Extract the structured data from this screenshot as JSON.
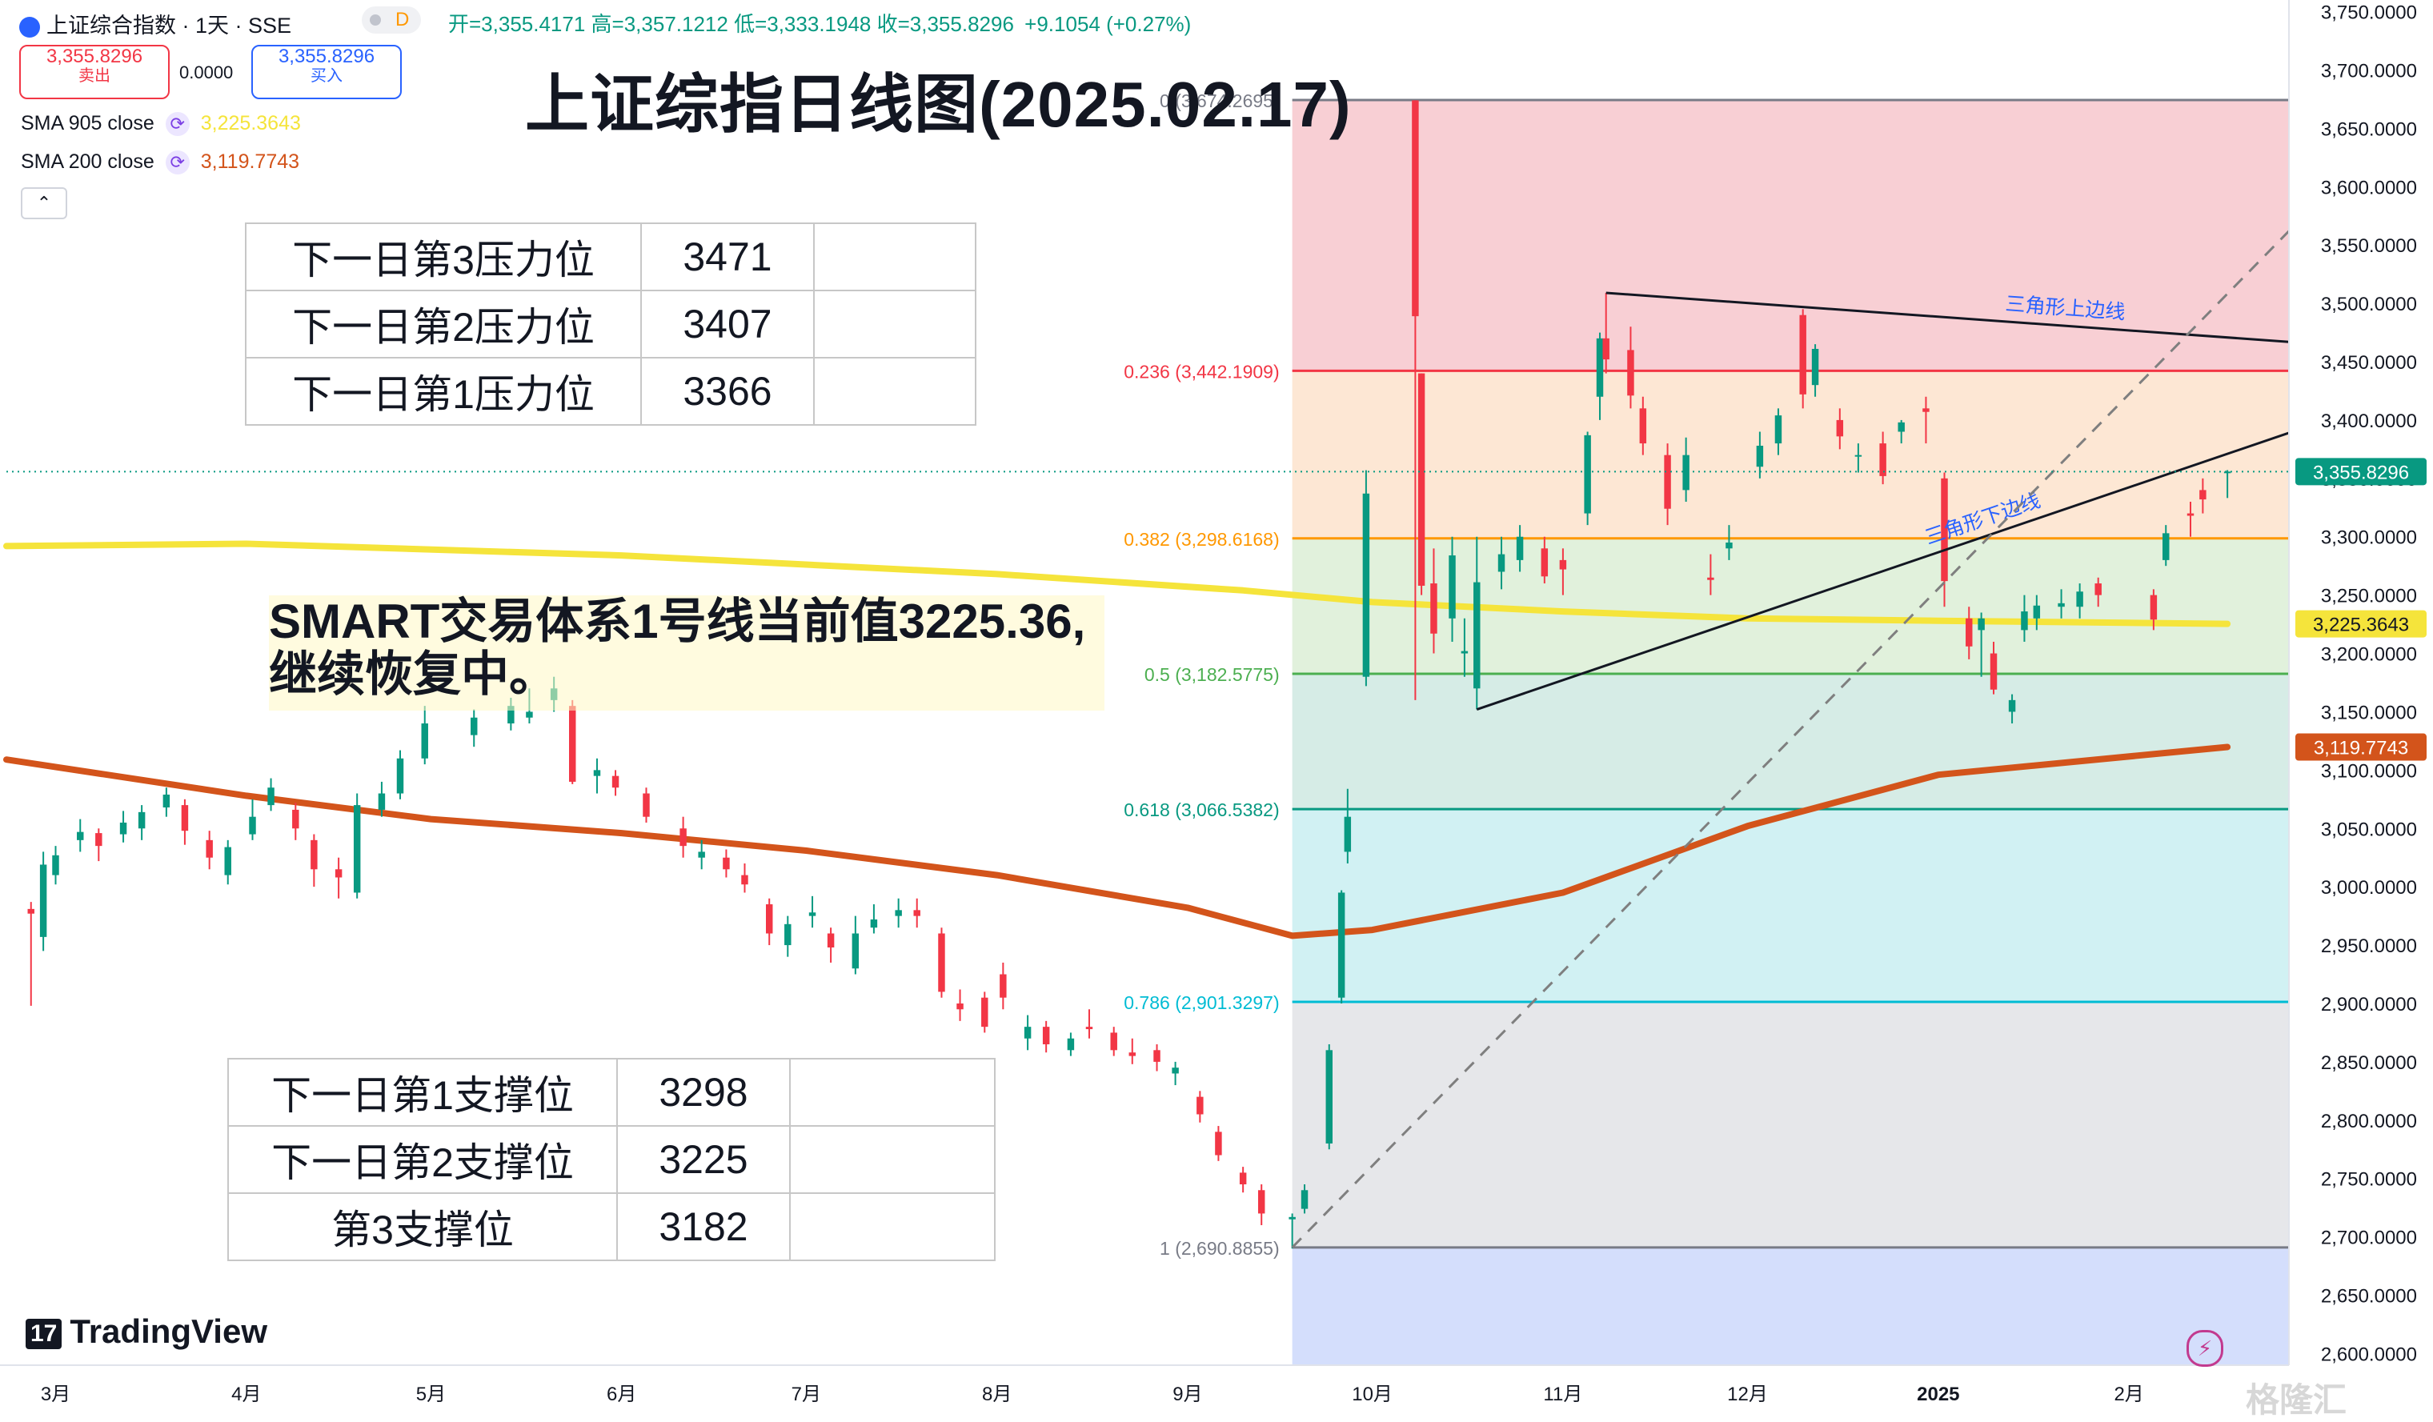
{
  "header": {
    "symbol": "上证综合指数 · 1天 · SSE",
    "badge": "D",
    "ohlc_label": "开=3,355.4171  高=3,357.1212  低=3,333.1948  收=3,355.8296",
    "change": "+9.1054 (+0.27%)",
    "sell_value": "3,355.8296",
    "sell_label": "卖出",
    "spread": "0.0000",
    "buy_value": "3,355.8296",
    "buy_label": "买入"
  },
  "indicators": [
    {
      "label": "SMA 905 close",
      "value": "3,225.3643",
      "color": "#f5e43b"
    },
    {
      "label": "SMA 200 close",
      "value": "3,119.7743",
      "color": "#d3541b"
    }
  ],
  "collapse_icon": "chevron-up-icon",
  "title": "上证综指日线图(2025.02.17)",
  "note": {
    "line1": "SMART交易体系1号线当前值3225.36,",
    "line2": "继续恢复中。"
  },
  "resistance_table": [
    {
      "label": "下一日第3压力位",
      "value": "3471"
    },
    {
      "label": "下一日第2压力位",
      "value": "3407"
    },
    {
      "label": "下一日第1压力位",
      "value": "3366"
    }
  ],
  "support_table": [
    {
      "label": "下一日第1支撑位",
      "value": "3298"
    },
    {
      "label": "下一日第2支撑位",
      "value": "3225"
    },
    {
      "label": "第3支撑位",
      "value": "3182"
    }
  ],
  "brand": "TradingView",
  "watermark": "格隆汇",
  "colors": {
    "up": "#089981",
    "down": "#f23645"
  },
  "chart_data": {
    "type": "candlestick",
    "y_range": [
      2590,
      3760
    ],
    "y_ticks": [
      2600,
      2650,
      2700,
      2750,
      2800,
      2850,
      2900,
      2950,
      3000,
      3050,
      3100,
      3150,
      3200,
      3250,
      3300,
      3350,
      3400,
      3450,
      3500,
      3550,
      3600,
      3650,
      3700,
      3750
    ],
    "y_tick_labels": [
      "2,600.0000",
      "2,650.0000",
      "2,700.0000",
      "2,750.0000",
      "2,800.0000",
      "2,850.0000",
      "2,900.0000",
      "2,950.0000",
      "3,000.0000",
      "3,050.0000",
      "3,100.0000",
      "3,150.0000",
      "3,200.0000",
      "3,250.0000",
      "3,300.0000",
      "3,350.0000",
      "3,400.0000",
      "3,450.0000",
      "3,500.0000",
      "3,550.0000",
      "3,600.0000",
      "3,650.0000",
      "3,700.0000",
      "3,750.0000"
    ],
    "x_range": [
      "2024-02-22",
      "2025-02-27"
    ],
    "x_ticks": [
      {
        "date": "2024-03-01",
        "label": "3月"
      },
      {
        "date": "2024-04-01",
        "label": "4月"
      },
      {
        "date": "2024-05-01",
        "label": "5月"
      },
      {
        "date": "2024-06-01",
        "label": "6月"
      },
      {
        "date": "2024-07-01",
        "label": "7月"
      },
      {
        "date": "2024-08-01",
        "label": "8月"
      },
      {
        "date": "2024-09-01",
        "label": "9月"
      },
      {
        "date": "2024-10-01",
        "label": "10月"
      },
      {
        "date": "2024-11-01",
        "label": "11月"
      },
      {
        "date": "2024-12-01",
        "label": "12月"
      },
      {
        "date": "2025-01-01",
        "label": "2025"
      },
      {
        "date": "2025-02-01",
        "label": "2月"
      }
    ],
    "fibonacci": {
      "start_date": "2024-09-18",
      "levels": [
        {
          "ratio": "0",
          "price": 3674.2695,
          "label": "0 (3,674.2695)",
          "line": "#787b86",
          "fill": "#f7c7cc"
        },
        {
          "ratio": "0.236",
          "price": 3442.1909,
          "label": "0.236 (3,442.1909)",
          "line": "#f23645",
          "fill": "#fde3cd"
        },
        {
          "ratio": "0.382",
          "price": 3298.6168,
          "label": "0.382 (3,298.6168)",
          "line": "#ff9800",
          "fill": "#dcefd6"
        },
        {
          "ratio": "0.5",
          "price": 3182.5775,
          "label": "0.5 (3,182.5775)",
          "line": "#4caf50",
          "fill": "#cfe9e2"
        },
        {
          "ratio": "0.618",
          "price": 3066.5382,
          "label": "0.618 (3,066.5382)",
          "line": "#089981",
          "fill": "#c9eef1"
        },
        {
          "ratio": "0.786",
          "price": 2901.3297,
          "label": "0.786 (2,901.3297)",
          "line": "#00bcd4",
          "fill": "#e2e3e6"
        },
        {
          "ratio": "1",
          "price": 2690.8855,
          "label": "1 (2,690.8855)",
          "line": "#787b86",
          "fill": "#ccd8fc"
        }
      ]
    },
    "trendlines": [
      {
        "name": "三角形上边线",
        "from": [
          "2024-11-08",
          3509
        ],
        "to": [
          "2025-02-27",
          3467
        ],
        "color": "#131722"
      },
      {
        "name": "三角形下边线",
        "from": [
          "2024-10-18",
          3152
        ],
        "to": [
          "2025-02-27",
          3389
        ],
        "color": "#131722"
      },
      {
        "from": [
          "2024-09-18",
          2690.9
        ],
        "to": [
          "2025-02-27",
          3562
        ],
        "color": "#7f7f7f",
        "dashed": true
      }
    ],
    "series": [
      {
        "name": "SMA 905 close",
        "color": "#f5e43b",
        "points": [
          [
            "2024-02-22",
            3292
          ],
          [
            "2024-04-01",
            3294
          ],
          [
            "2024-06-01",
            3284
          ],
          [
            "2024-08-01",
            3268
          ],
          [
            "2024-09-10",
            3254
          ],
          [
            "2024-10-01",
            3244
          ],
          [
            "2024-11-01",
            3236
          ],
          [
            "2024-12-01",
            3230
          ],
          [
            "2025-01-01",
            3228
          ],
          [
            "2025-02-17",
            3225.3643
          ]
        ]
      },
      {
        "name": "SMA 200 close",
        "color": "#d3541b",
        "points": [
          [
            "2024-02-22",
            3109
          ],
          [
            "2024-04-01",
            3078
          ],
          [
            "2024-05-01",
            3058
          ],
          [
            "2024-06-01",
            3046
          ],
          [
            "2024-07-01",
            3031
          ],
          [
            "2024-08-01",
            3010
          ],
          [
            "2024-09-01",
            2982
          ],
          [
            "2024-09-18",
            2958
          ],
          [
            "2024-10-01",
            2963
          ],
          [
            "2024-11-01",
            2995
          ],
          [
            "2024-12-01",
            3052
          ],
          [
            "2025-01-01",
            3096
          ],
          [
            "2025-02-17",
            3119.7743
          ]
        ]
      }
    ],
    "candles": [
      [
        "2024-02-26",
        2981,
        2977,
        2987,
        2898
      ],
      [
        "2024-02-28",
        2957,
        3019,
        3030,
        2945
      ],
      [
        "2024-03-01",
        3010,
        3027,
        3035,
        3002
      ],
      [
        "2024-03-05",
        3040,
        3047,
        3058,
        3030
      ],
      [
        "2024-03-08",
        3046,
        3035,
        3050,
        3022
      ],
      [
        "2024-03-12",
        3045,
        3055,
        3065,
        3038
      ],
      [
        "2024-03-15",
        3050,
        3064,
        3070,
        3040
      ],
      [
        "2024-03-19",
        3068,
        3079,
        3085,
        3060
      ],
      [
        "2024-03-22",
        3070,
        3048,
        3075,
        3036
      ],
      [
        "2024-03-26",
        3040,
        3025,
        3048,
        3015
      ],
      [
        "2024-03-29",
        3010,
        3034,
        3040,
        3002
      ],
      [
        "2024-04-02",
        3045,
        3060,
        3075,
        3040
      ],
      [
        "2024-04-05",
        3070,
        3085,
        3093,
        3065
      ],
      [
        "2024-04-09",
        3066,
        3050,
        3072,
        3040
      ],
      [
        "2024-04-12",
        3040,
        3015,
        3045,
        3000
      ],
      [
        "2024-04-16",
        3015,
        3008,
        3025,
        2990
      ],
      [
        "2024-04-19",
        2995,
        3070,
        3080,
        2990
      ],
      [
        "2024-04-23",
        3066,
        3080,
        3090,
        3060
      ],
      [
        "2024-04-26",
        3080,
        3110,
        3117,
        3075
      ],
      [
        "2024-04-30",
        3110,
        3140,
        3155,
        3105
      ],
      [
        "2024-05-08",
        3130,
        3145,
        3152,
        3120
      ],
      [
        "2024-05-14",
        3140,
        3155,
        3162,
        3134
      ],
      [
        "2024-05-17",
        3145,
        3150,
        3170,
        3140
      ],
      [
        "2024-05-21",
        3160,
        3170,
        3180,
        3150
      ],
      [
        "2024-05-24",
        3155,
        3090,
        3160,
        3088
      ],
      [
        "2024-05-28",
        3095,
        3100,
        3110,
        3080
      ],
      [
        "2024-05-31",
        3095,
        3085,
        3100,
        3078
      ],
      [
        "2024-06-05",
        3080,
        3060,
        3085,
        3055
      ],
      [
        "2024-06-11",
        3050,
        3035,
        3060,
        3025
      ],
      [
        "2024-06-14",
        3025,
        3030,
        3040,
        3015
      ],
      [
        "2024-06-18",
        3025,
        3015,
        3032,
        3008
      ],
      [
        "2024-06-21",
        3010,
        3002,
        3020,
        2995
      ],
      [
        "2024-06-25",
        2985,
        2960,
        2990,
        2950
      ],
      [
        "2024-06-28",
        2950,
        2968,
        2975,
        2940
      ],
      [
        "2024-07-02",
        2975,
        2978,
        2992,
        2965
      ],
      [
        "2024-07-05",
        2960,
        2948,
        2965,
        2935
      ],
      [
        "2024-07-09",
        2930,
        2960,
        2975,
        2925
      ],
      [
        "2024-07-12",
        2965,
        2972,
        2985,
        2960
      ],
      [
        "2024-07-16",
        2975,
        2980,
        2990,
        2965
      ],
      [
        "2024-07-19",
        2980,
        2975,
        2990,
        2965
      ],
      [
        "2024-07-23",
        2960,
        2910,
        2965,
        2905
      ],
      [
        "2024-07-26",
        2900,
        2895,
        2912,
        2885
      ],
      [
        "2024-07-30",
        2905,
        2880,
        2910,
        2875
      ],
      [
        "2024-08-02",
        2925,
        2905,
        2935,
        2895
      ],
      [
        "2024-08-06",
        2870,
        2880,
        2890,
        2860
      ],
      [
        "2024-08-09",
        2880,
        2865,
        2885,
        2858
      ],
      [
        "2024-08-13",
        2860,
        2870,
        2875,
        2855
      ],
      [
        "2024-08-16",
        2880,
        2878,
        2895,
        2870
      ],
      [
        "2024-08-20",
        2875,
        2860,
        2880,
        2855
      ],
      [
        "2024-08-23",
        2858,
        2855,
        2870,
        2848
      ],
      [
        "2024-08-27",
        2860,
        2850,
        2865,
        2842
      ],
      [
        "2024-08-30",
        2840,
        2845,
        2850,
        2830
      ],
      [
        "2024-09-03",
        2820,
        2805,
        2825,
        2798
      ],
      [
        "2024-09-06",
        2790,
        2770,
        2795,
        2765
      ],
      [
        "2024-09-10",
        2755,
        2745,
        2760,
        2738
      ],
      [
        "2024-09-13",
        2740,
        2720,
        2745,
        2710
      ],
      [
        "2024-09-18",
        2715,
        2717,
        2720,
        2690
      ],
      [
        "2024-09-20",
        2724,
        2740,
        2745,
        2720
      ],
      [
        "2024-09-24",
        2780,
        2860,
        2865,
        2775
      ],
      [
        "2024-09-26",
        2905,
        2995,
        2997,
        2900
      ],
      [
        "2024-09-27",
        3030,
        3060,
        3084,
        3020
      ],
      [
        "2024-09-30",
        3180,
        3337,
        3357,
        3172
      ],
      [
        "2024-10-08",
        3674,
        3489,
        3674,
        3160
      ],
      [
        "2024-10-09",
        3440,
        3258,
        3440,
        3250
      ],
      [
        "2024-10-11",
        3260,
        3217,
        3290,
        3200
      ],
      [
        "2024-10-14",
        3230,
        3284,
        3300,
        3210
      ],
      [
        "2024-10-16",
        3200,
        3202,
        3230,
        3180
      ],
      [
        "2024-10-18",
        3170,
        3261,
        3300,
        3152
      ],
      [
        "2024-10-22",
        3270,
        3285,
        3300,
        3255
      ],
      [
        "2024-10-25",
        3280,
        3300,
        3310,
        3270
      ],
      [
        "2024-10-29",
        3290,
        3266,
        3300,
        3260
      ],
      [
        "2024-11-01",
        3280,
        3272,
        3290,
        3250
      ],
      [
        "2024-11-05",
        3320,
        3387,
        3390,
        3310
      ],
      [
        "2024-11-07",
        3420,
        3470,
        3475,
        3400
      ],
      [
        "2024-11-08",
        3470,
        3452,
        3509,
        3440
      ],
      [
        "2024-11-12",
        3460,
        3421,
        3480,
        3410
      ],
      [
        "2024-11-14",
        3410,
        3380,
        3420,
        3370
      ],
      [
        "2024-11-18",
        3370,
        3324,
        3380,
        3310
      ],
      [
        "2024-11-21",
        3340,
        3370,
        3385,
        3330
      ],
      [
        "2024-11-25",
        3265,
        3263,
        3285,
        3250
      ],
      [
        "2024-11-28",
        3290,
        3295,
        3310,
        3280
      ],
      [
        "2024-12-03",
        3360,
        3378,
        3390,
        3350
      ],
      [
        "2024-12-06",
        3380,
        3404,
        3410,
        3370
      ],
      [
        "2024-12-10",
        3490,
        3422,
        3495,
        3410
      ],
      [
        "2024-12-12",
        3430,
        3461,
        3465,
        3420
      ],
      [
        "2024-12-16",
        3400,
        3386,
        3410,
        3375
      ],
      [
        "2024-12-19",
        3370,
        3370,
        3380,
        3355
      ],
      [
        "2024-12-23",
        3380,
        3352,
        3390,
        3345
      ],
      [
        "2024-12-26",
        3390,
        3398,
        3400,
        3380
      ],
      [
        "2024-12-30",
        3410,
        3407,
        3420,
        3380
      ],
      [
        "2025-01-02",
        3350,
        3262,
        3355,
        3240
      ],
      [
        "2025-01-06",
        3230,
        3206,
        3240,
        3195
      ],
      [
        "2025-01-08",
        3220,
        3230,
        3235,
        3180
      ],
      [
        "2025-01-10",
        3200,
        3169,
        3210,
        3165
      ],
      [
        "2025-01-13",
        3150,
        3160,
        3165,
        3140
      ],
      [
        "2025-01-15",
        3220,
        3236,
        3250,
        3210
      ],
      [
        "2025-01-17",
        3230,
        3241,
        3250,
        3220
      ],
      [
        "2025-01-21",
        3240,
        3243,
        3255,
        3230
      ],
      [
        "2025-01-24",
        3240,
        3253,
        3260,
        3230
      ],
      [
        "2025-01-27",
        3260,
        3250,
        3265,
        3240
      ],
      [
        "2025-02-05",
        3250,
        3229,
        3255,
        3220
      ],
      [
        "2025-02-07",
        3280,
        3303,
        3310,
        3275
      ],
      [
        "2025-02-11",
        3320,
        3318,
        3330,
        3300
      ],
      [
        "2025-02-13",
        3340,
        3332,
        3350,
        3320
      ],
      [
        "2025-02-17",
        3355.4171,
        3355.8296,
        3357.1212,
        3333.1948
      ]
    ],
    "last_price": {
      "value": 3355.8296,
      "label": "3,355.8296"
    },
    "price_badges": [
      {
        "value": 3225.3643,
        "label": "3,225.3643",
        "bg": "#f5e43b",
        "fg": "#131722"
      },
      {
        "value": 3119.7743,
        "label": "3,119.7743",
        "bg": "#d3541b",
        "fg": "#ffffff"
      }
    ]
  }
}
